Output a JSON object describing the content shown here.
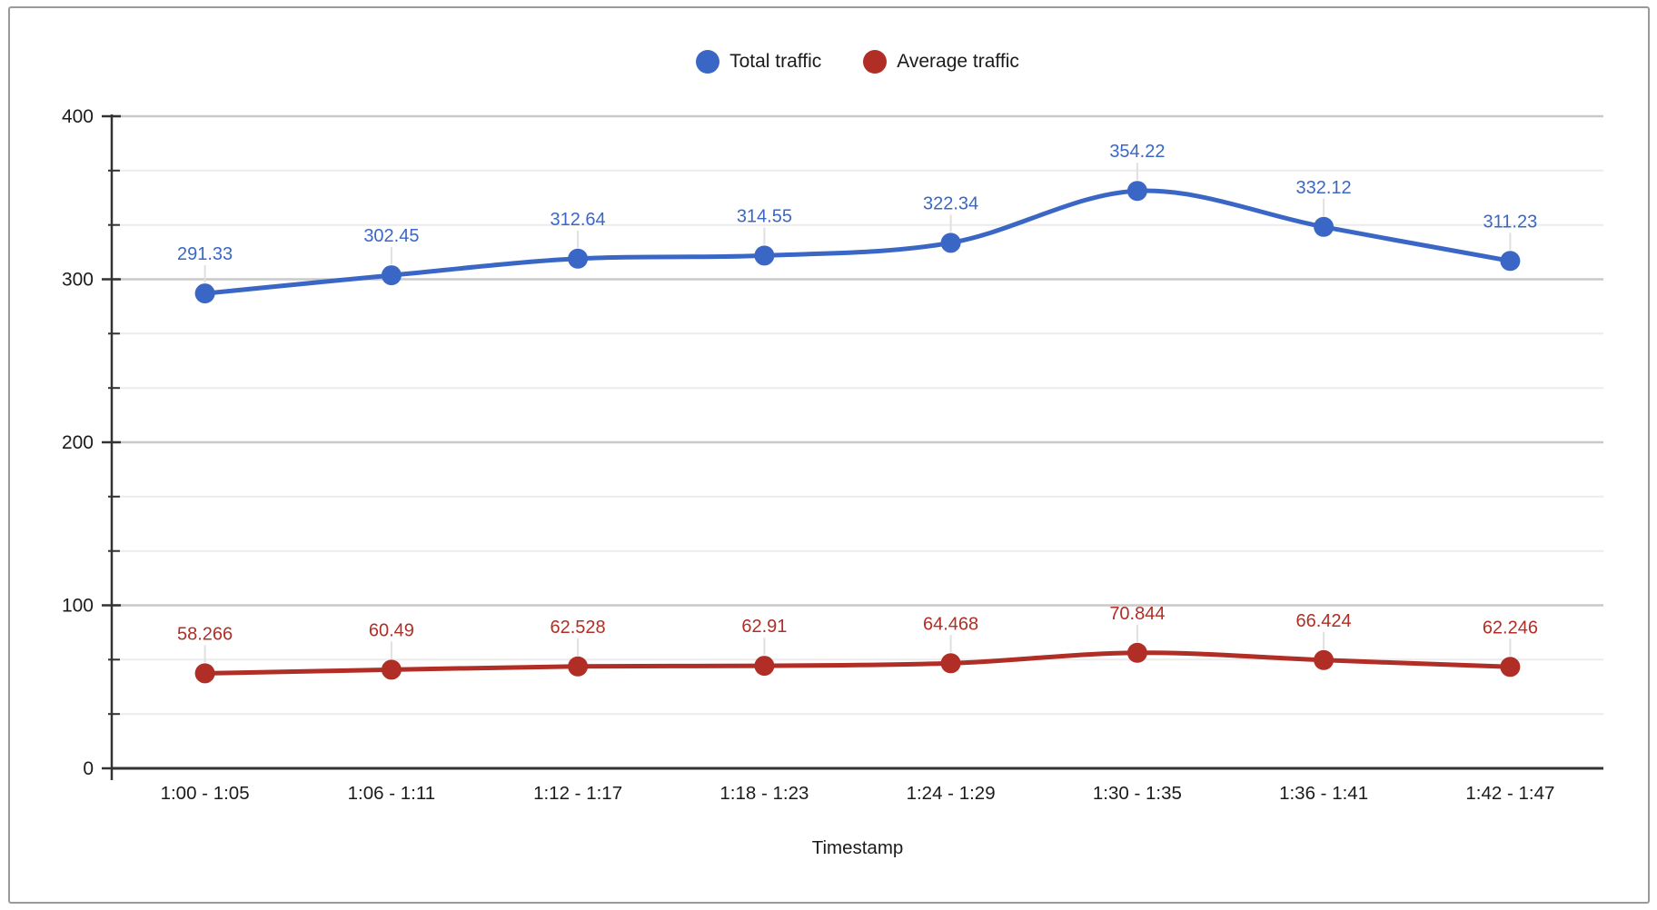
{
  "chart_data": {
    "type": "line",
    "smooth": true,
    "title": "",
    "xlabel": "Timestamp",
    "ylabel": "",
    "categories": [
      "1:00 - 1:05",
      "1:06 - 1:11",
      "1:12 - 1:17",
      "1:18 - 1:23",
      "1:24 - 1:29",
      "1:30 - 1:35",
      "1:36 - 1:41",
      "1:42 - 1:47"
    ],
    "series": [
      {
        "name": "Total traffic",
        "color": "#3A67C6",
        "values": [
          291.33,
          302.45,
          312.64,
          314.55,
          322.34,
          354.22,
          332.12,
          311.23
        ]
      },
      {
        "name": "Average traffic",
        "color": "#B02E25",
        "values": [
          58.266,
          60.49,
          62.528,
          62.91,
          64.468,
          70.844,
          66.424,
          62.246
        ]
      }
    ],
    "ylim": [
      0,
      400
    ],
    "y_major_ticks": [
      0,
      100,
      200,
      300,
      400
    ],
    "y_minor_divisions": 3,
    "grid": true,
    "legend_position": "top",
    "point_labels": true
  },
  "styles": {
    "axis_color": "#333333",
    "major_grid_color": "#c9c9c9",
    "minor_grid_color": "#ececec",
    "text_color": "#1b1b1b",
    "stem_color": "#e0e0e0",
    "frame_border_color": "#9a9a9a",
    "background": "#ffffff"
  }
}
